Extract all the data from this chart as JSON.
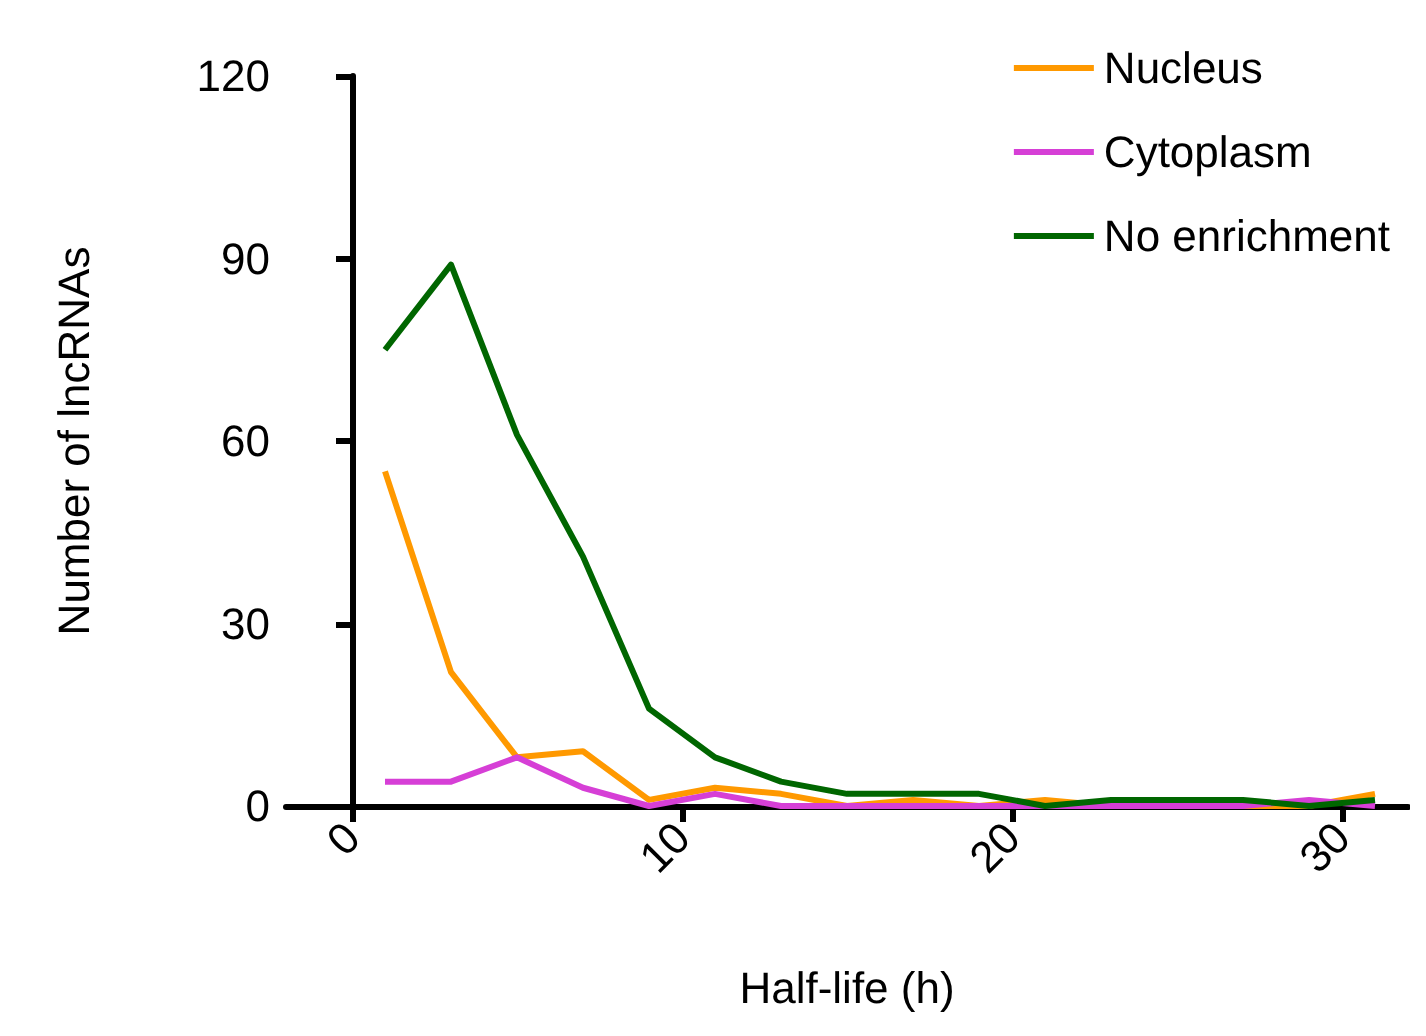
{
  "chart_data": {
    "type": "line",
    "xlabel": "Half-life (h)",
    "ylabel": "Number of lncRNAs",
    "x": [
      1,
      3,
      5,
      7,
      9,
      11,
      13,
      15,
      17,
      19,
      21,
      23,
      25,
      27,
      29,
      31
    ],
    "series": [
      {
        "name": "Nucleus",
        "color": "#ff9900",
        "values": [
          55,
          22,
          8,
          9,
          1,
          3,
          2,
          0,
          1,
          0,
          1,
          0,
          0,
          0,
          0,
          2
        ]
      },
      {
        "name": "Cytoplasm",
        "color": "#d63fd6",
        "values": [
          4,
          4,
          8,
          3,
          0,
          2,
          0,
          0,
          0,
          0,
          0,
          0,
          0,
          0,
          1,
          0
        ]
      },
      {
        "name": "No enrichment",
        "color": "#006600",
        "values": [
          75,
          89,
          61,
          41,
          16,
          8,
          4,
          2,
          2,
          2,
          0,
          1,
          1,
          1,
          0,
          1
        ]
      }
    ],
    "xlim": [
      -2,
      32
    ],
    "xticks": [
      0,
      10,
      20,
      30
    ],
    "ylim": [
      0,
      120
    ],
    "yticks": [
      0,
      30,
      60,
      90,
      120
    ],
    "legend": "top right",
    "marker": "none",
    "line_style": "solid",
    "grid": false
  }
}
